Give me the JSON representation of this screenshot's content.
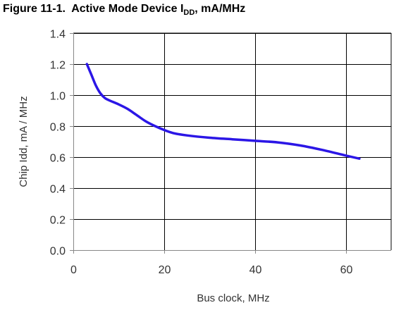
{
  "figure": {
    "label": "Figure 11-1.",
    "title_main": "Active Mode Device I",
    "title_subscript": "DD",
    "title_suffix": ", mA/MHz"
  },
  "chart_data": {
    "type": "line",
    "title": "Active Mode Device IDD, mA/MHz",
    "xlabel": "Bus clock, MHz",
    "ylabel": "Chip Idd, mA / MHz",
    "xlim": [
      0,
      70
    ],
    "ylim": [
      0,
      1.4
    ],
    "xticks": [
      0,
      20,
      40,
      60
    ],
    "yticks": [
      0.0,
      0.2,
      0.4,
      0.6,
      0.8,
      1.0,
      1.2,
      1.4
    ],
    "xtick_labels": [
      "0",
      "20",
      "40",
      "60"
    ],
    "ytick_labels": [
      "0.0",
      "0.2",
      "0.4",
      "0.6",
      "0.8",
      "1.0",
      "1.2",
      "1.4"
    ],
    "grid": true,
    "legend": "none",
    "line_color": "#2b16e6",
    "series": [
      {
        "x": [
          3,
          4,
          5,
          6,
          7,
          8,
          10,
          12,
          14,
          16,
          18,
          20,
          22,
          25,
          30,
          35,
          40,
          45,
          50,
          55,
          60,
          63
        ],
        "values": [
          1.2,
          1.13,
          1.06,
          1.01,
          0.98,
          0.965,
          0.94,
          0.91,
          0.87,
          0.83,
          0.8,
          0.775,
          0.755,
          0.74,
          0.725,
          0.715,
          0.705,
          0.695,
          0.675,
          0.645,
          0.61,
          0.59
        ]
      }
    ]
  }
}
